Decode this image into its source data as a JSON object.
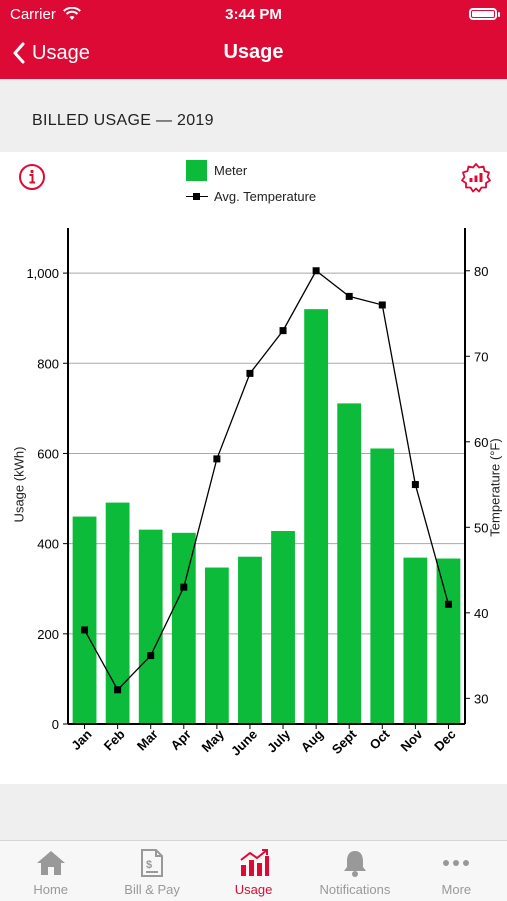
{
  "status_bar": {
    "carrier": "Carrier",
    "time": "3:44 PM"
  },
  "nav": {
    "back_label": "Usage",
    "title": "Usage"
  },
  "section_title": "BILLED USAGE — 2019",
  "legend": {
    "meter": "Meter",
    "temperature": "Avg. Temperature"
  },
  "colors": {
    "brand": "#dd0a35",
    "bar": "#0dbb3a",
    "line": "#000000"
  },
  "chart_data": {
    "type": "bar",
    "categories": [
      "Jan",
      "Feb",
      "Mar",
      "Apr",
      "May",
      "June",
      "July",
      "Aug",
      "Sept",
      "Oct",
      "Nov",
      "Dec"
    ],
    "series": [
      {
        "name": "Meter",
        "type": "bar",
        "axis": "left",
        "values": [
          460,
          491,
          431,
          424,
          347,
          371,
          428,
          920,
          711,
          611,
          369,
          367
        ]
      },
      {
        "name": "Avg. Temperature",
        "type": "line",
        "axis": "right",
        "values": [
          38,
          31,
          35,
          43,
          58,
          68,
          73,
          80,
          77,
          76,
          55,
          41
        ]
      }
    ],
    "ylabel": "Usage (kWh)",
    "ylabel_right": "Temperature (°F)",
    "ylim": [
      0,
      1100
    ],
    "yticks": [
      "0",
      "200",
      "400",
      "600",
      "800",
      "1,000"
    ],
    "yticks_values": [
      0,
      200,
      400,
      600,
      800,
      1000
    ],
    "ylim_right": [
      27,
      85
    ],
    "yticks_right": [
      30,
      40,
      50,
      60,
      70,
      80
    ],
    "grid": true,
    "legend_position": "top-center"
  },
  "tabs": [
    {
      "label": "Home",
      "icon": "home-icon"
    },
    {
      "label": "Bill & Pay",
      "icon": "bill-icon"
    },
    {
      "label": "Usage",
      "icon": "usage-icon",
      "active": true
    },
    {
      "label": "Notifications",
      "icon": "bell-icon"
    },
    {
      "label": "More",
      "icon": "more-icon"
    }
  ]
}
